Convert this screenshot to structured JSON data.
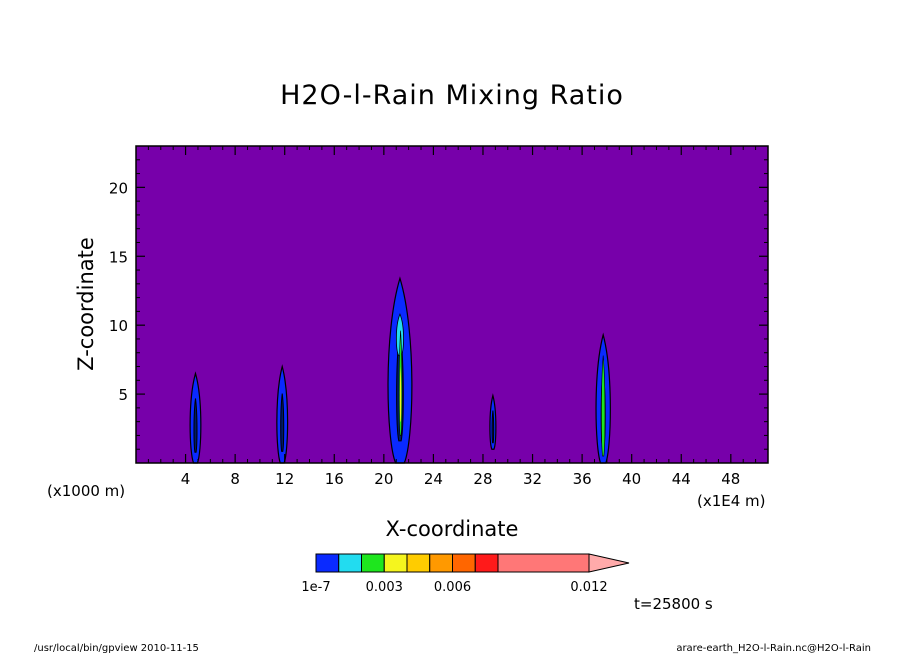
{
  "chart_data": {
    "type": "contour",
    "title": "H2O-l-Rain Mixing Ratio",
    "xlabel": "X-coordinate",
    "ylabel": "Z-coordinate",
    "x_unit_left": "(x1000 m)",
    "x_unit_right": "(x1E4 m)",
    "xlim": [
      0,
      51
    ],
    "ylim": [
      0,
      23
    ],
    "xticks": [
      4,
      8,
      12,
      16,
      20,
      24,
      28,
      32,
      36,
      40,
      44,
      48
    ],
    "yticks": [
      5,
      10,
      15,
      20
    ],
    "background_color": "#7700aa",
    "plumes": [
      {
        "x": 4.8,
        "top": 6.5,
        "bottom": 0.0,
        "halfwidth": 0.45
      },
      {
        "x": 11.8,
        "top": 7.0,
        "bottom": 0.0,
        "halfwidth": 0.45
      },
      {
        "x": 21.3,
        "top": 13.4,
        "bottom": 0.0,
        "halfwidth": 1.0
      },
      {
        "x": 28.8,
        "top": 4.9,
        "bottom": 1.0,
        "halfwidth": 0.25
      },
      {
        "x": 37.7,
        "top": 9.3,
        "bottom": 0.0,
        "halfwidth": 0.6
      }
    ],
    "colorbar": {
      "levels": [
        {
          "color": "#0a2aff"
        },
        {
          "color": "#22dcf0"
        },
        {
          "color": "#1ee61e"
        },
        {
          "color": "#f5f51e"
        },
        {
          "color": "#ffcc00"
        },
        {
          "color": "#ff9900"
        },
        {
          "color": "#ff6600"
        },
        {
          "color": "#ff1a1a"
        },
        {
          "color": "#ff7777"
        }
      ],
      "extend_color": "#ffaaaa",
      "labels": [
        "1e-7",
        "0.003",
        "0.006",
        "0.012"
      ]
    },
    "time_label": "t=25800 s"
  },
  "footer": {
    "left": "/usr/local/bin/gpview  2010-11-15",
    "right": "arare-earth_H2O-l-Rain.nc@H2O-l-Rain"
  }
}
